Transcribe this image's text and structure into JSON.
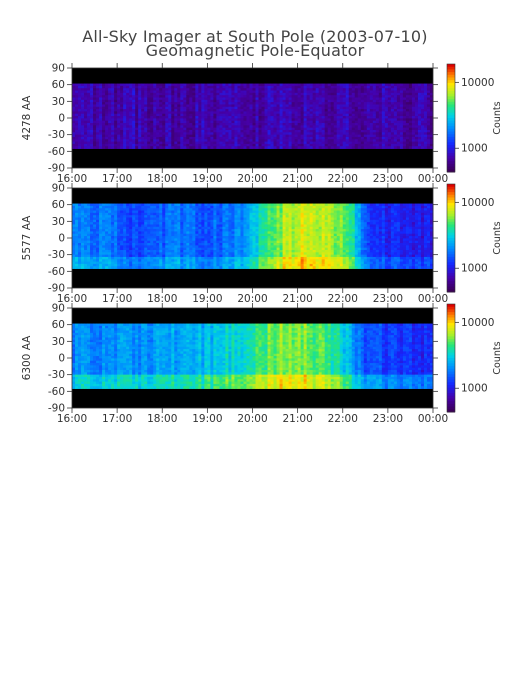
{
  "title_line1": "All-Sky Imager at South Pole (2003-07-10)",
  "title_line2": "Geomagnetic Pole-Equator",
  "chart_data": [
    {
      "type": "heatmap",
      "ylabel": "4278 AA",
      "x_ticks": [
        "16:00",
        "17:00",
        "18:00",
        "19:00",
        "20:00",
        "21:00",
        "22:00",
        "23:00",
        "00:00"
      ],
      "y_ticks": [
        90,
        60,
        30,
        0,
        -30,
        -60,
        -90
      ],
      "ylim": [
        -90,
        90
      ],
      "colorbar": {
        "label": "Counts",
        "ticks": [
          "10000",
          "1000"
        ],
        "scale": "log"
      },
      "data_band": [
        -55,
        62
      ],
      "intensity_profile": [
        0.12,
        0.13,
        0.12,
        0.13,
        0.12,
        0.11,
        0.12,
        0.12,
        0.13,
        0.12,
        0.12,
        0.12,
        0.12,
        0.12,
        0.12,
        0.12,
        0.11,
        0.11
      ]
    },
    {
      "type": "heatmap",
      "ylabel": "5577 AA",
      "x_ticks": [
        "16:00",
        "17:00",
        "18:00",
        "19:00",
        "20:00",
        "21:00",
        "22:00",
        "23:00",
        "00:00"
      ],
      "y_ticks": [
        90,
        60,
        30,
        0,
        -30,
        -60,
        -90
      ],
      "ylim": [
        -90,
        90
      ],
      "colorbar": {
        "label": "Counts",
        "ticks": [
          "10000",
          "1000"
        ],
        "scale": "log"
      },
      "data_band": [
        -55,
        62
      ],
      "intensity_profile": [
        0.4,
        0.38,
        0.34,
        0.3,
        0.32,
        0.36,
        0.34,
        0.33,
        0.4,
        0.56,
        0.72,
        0.78,
        0.74,
        0.66,
        0.26,
        0.24,
        0.22,
        0.21
      ]
    },
    {
      "type": "heatmap",
      "ylabel": "6300 AA",
      "x_ticks": [
        "16:00",
        "17:00",
        "18:00",
        "19:00",
        "20:00",
        "21:00",
        "22:00",
        "23:00",
        "00:00"
      ],
      "y_ticks": [
        90,
        60,
        30,
        0,
        -30,
        -60,
        -90
      ],
      "ylim": [
        -90,
        90
      ],
      "colorbar": {
        "label": "Counts",
        "ticks": [
          "10000",
          "1000"
        ],
        "scale": "log"
      },
      "data_band": [
        -55,
        62
      ],
      "intensity_profile": [
        0.38,
        0.39,
        0.4,
        0.4,
        0.42,
        0.44,
        0.46,
        0.5,
        0.56,
        0.64,
        0.7,
        0.68,
        0.62,
        0.5,
        0.3,
        0.28,
        0.26,
        0.25
      ]
    }
  ],
  "colors": {
    "background": "#ffffff",
    "no_data": "#000000",
    "axis": "#333333"
  }
}
